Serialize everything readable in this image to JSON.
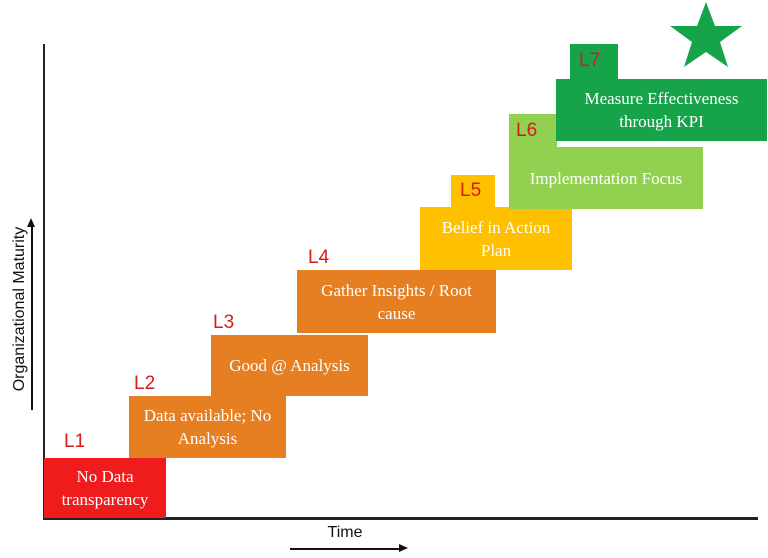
{
  "axes": {
    "y_label": "Organizational Maturity",
    "x_label": "Time"
  },
  "colors": {
    "l1": "#ee1c1c",
    "l2": "#e67e22",
    "l3": "#e67e22",
    "l4": "#e67e22",
    "l5": "#ffc000",
    "l6": "#92d050",
    "l7": "#16a34a",
    "level_label": "#d71a1a",
    "star": "#16a34a"
  },
  "levels": [
    {
      "id": "L1",
      "text": "No Data transparency"
    },
    {
      "id": "L2",
      "text": "Data available; No Analysis"
    },
    {
      "id": "L3",
      "text": "Good @ Analysis"
    },
    {
      "id": "L4",
      "text": "Gather Insights / Root cause"
    },
    {
      "id": "L5",
      "text": "Belief in Action Plan"
    },
    {
      "id": "L6",
      "text": "Implementation Focus"
    },
    {
      "id": "L7",
      "text": "Measure Effectiveness through KPI"
    }
  ],
  "marker_icon": "star-icon"
}
